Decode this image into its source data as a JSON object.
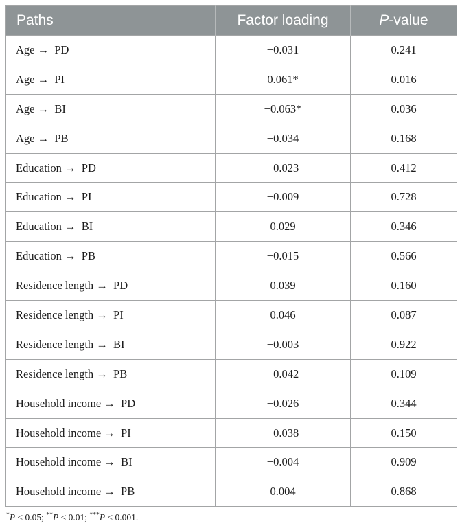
{
  "colors": {
    "header_bg": "#8e9496",
    "header_text": "#ffffff",
    "border": "#a3a5a6",
    "header_divider": "#b6b9ba",
    "body_text": "#1c1c1c",
    "page_bg": "#ffffff"
  },
  "table": {
    "headers": {
      "paths": "Paths",
      "factor_loading": "Factor loading",
      "p_value_italic": "P",
      "p_value_rest": "-value"
    },
    "rows": [
      {
        "path": "Age →  PD",
        "factor_loading": "−0.031",
        "p_value": "0.241"
      },
      {
        "path": "Age →  PI",
        "factor_loading": "0.061*",
        "p_value": "0.016"
      },
      {
        "path": "Age →  BI",
        "factor_loading": "−0.063*",
        "p_value": "0.036"
      },
      {
        "path": "Age →  PB",
        "factor_loading": "−0.034",
        "p_value": "0.168"
      },
      {
        "path": "Education →  PD",
        "factor_loading": "−0.023",
        "p_value": "0.412"
      },
      {
        "path": "Education →  PI",
        "factor_loading": "−0.009",
        "p_value": "0.728"
      },
      {
        "path": "Education →  BI",
        "factor_loading": "0.029",
        "p_value": "0.346"
      },
      {
        "path": "Education →  PB",
        "factor_loading": "−0.015",
        "p_value": "0.566"
      },
      {
        "path": "Residence length →  PD",
        "factor_loading": "0.039",
        "p_value": "0.160"
      },
      {
        "path": "Residence length →  PI",
        "factor_loading": "0.046",
        "p_value": "0.087"
      },
      {
        "path": "Residence length →  BI",
        "factor_loading": "−0.003",
        "p_value": "0.922"
      },
      {
        "path": "Residence length →  PB",
        "factor_loading": "−0.042",
        "p_value": "0.109"
      },
      {
        "path": "Household income →  PD",
        "factor_loading": "−0.026",
        "p_value": "0.344"
      },
      {
        "path": "Household income →  PI",
        "factor_loading": "−0.038",
        "p_value": "0.150"
      },
      {
        "path": "Household income →  BI",
        "factor_loading": "−0.004",
        "p_value": "0.909"
      },
      {
        "path": "Household income →  PB",
        "factor_loading": "0.004",
        "p_value": "0.868"
      }
    ]
  },
  "footnote": {
    "parts": [
      {
        "sup": "*",
        "p": "P",
        "rest": " < 0.05; "
      },
      {
        "sup": "**",
        "p": "P",
        "rest": " < 0.01; "
      },
      {
        "sup": "***",
        "p": "P",
        "rest": " < 0.001."
      }
    ]
  }
}
